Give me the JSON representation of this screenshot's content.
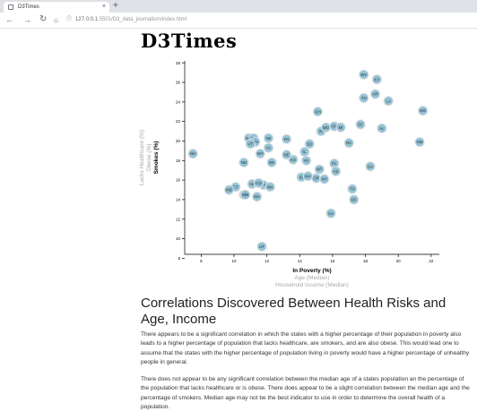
{
  "browser": {
    "tab_title": "D3Times",
    "tab_close": "×",
    "new_tab": "+",
    "url_host": "127.0.0.1",
    "url_rest": ":5501/D3_data_journalism/index.html"
  },
  "page": {
    "title": "D3Times",
    "article_heading": "Correlations Discovered Between Health Risks and Age, Income",
    "paragraphs": [
      "There appears to be a significant correlation in which the states with a higher percentage of their population in poverty also leads to a higher percentage of population that lacks healthcare, are smokers, and are also obese. This would lead one to assume that the states with the higher percentage of population living in poverty would have a higher percentage of unhealthy people in general.",
      "There does not appear to be any significant correlation between the median age of a states population an the percentage of the population that lacks healthcare or is obese. There does appear to be a slight correlation between the median age and the percentage of smokers. Median age may not be the best indicator to use in order to determine the overall health of a population."
    ]
  },
  "chart_data": {
    "type": "scatter",
    "colors": {
      "marker": "#89bdd3",
      "active_label": "#000000",
      "inactive_label": "#a9a9a9"
    },
    "x_axis": {
      "active_label": "In Poverty (%)",
      "inactive_labels": [
        "Age (Median)",
        "Household Income (Median)"
      ],
      "range": [
        7,
        22.5
      ],
      "ticks": [
        8,
        10,
        12,
        14,
        16,
        18,
        20,
        22
      ]
    },
    "y_axis": {
      "active_label": "Smokes (%)",
      "inactive_labels": [
        "Obese (%)",
        "Lacks Healthcare (%)"
      ],
      "range": [
        8.4,
        28.2
      ],
      "ticks": [
        8,
        10,
        12,
        14,
        16,
        18,
        20,
        22,
        24,
        26,
        28
      ]
    },
    "points": [
      {
        "abbr": "WV",
        "x": 17.9,
        "y": 26.8
      },
      {
        "abbr": "KY",
        "x": 18.7,
        "y": 26.3
      },
      {
        "abbr": "AR",
        "x": 18.6,
        "y": 24.8
      },
      {
        "abbr": "TN",
        "x": 17.9,
        "y": 24.4
      },
      {
        "abbr": "LA",
        "x": 19.4,
        "y": 24.1
      },
      {
        "abbr": "MS",
        "x": 21.5,
        "y": 23.1
      },
      {
        "abbr": "OH",
        "x": 15.1,
        "y": 23.0
      },
      {
        "abbr": "SC",
        "x": 17.7,
        "y": 21.7
      },
      {
        "abbr": "AL",
        "x": 19.0,
        "y": 21.3
      },
      {
        "abbr": "IN",
        "x": 15.3,
        "y": 21.0
      },
      {
        "abbr": "MO",
        "x": 15.6,
        "y": 21.4
      },
      {
        "abbr": "OK",
        "x": 16.1,
        "y": 21.5
      },
      {
        "abbr": "MI",
        "x": 16.5,
        "y": 21.4
      },
      {
        "abbr": "NC",
        "x": 17.0,
        "y": 19.8
      },
      {
        "abbr": "NM",
        "x": 21.3,
        "y": 19.9
      },
      {
        "abbr": "PA",
        "x": 13.2,
        "y": 20.2
      },
      {
        "abbr": "WI",
        "x": 12.1,
        "y": 20.3
      },
      {
        "abbr": "ME",
        "x": 10.9,
        "y": 20.3
      },
      {
        "abbr": "AK",
        "x": 11.2,
        "y": 20.3
      },
      {
        "abbr": "NH",
        "x": 11.3,
        "y": 19.9
      },
      {
        "abbr": "IA",
        "x": 12.1,
        "y": 19.3
      },
      {
        "abbr": "VT",
        "x": 11.0,
        "y": 19.7
      },
      {
        "abbr": "DE",
        "x": 12.3,
        "y": 17.8
      },
      {
        "abbr": "WY",
        "x": 11.6,
        "y": 18.7
      },
      {
        "abbr": "SD",
        "x": 14.6,
        "y": 19.7
      },
      {
        "abbr": "KS",
        "x": 13.6,
        "y": 18.1
      },
      {
        "abbr": "RI",
        "x": 14.4,
        "y": 18.0
      },
      {
        "abbr": "IL",
        "x": 14.3,
        "y": 18.9
      },
      {
        "abbr": "NE",
        "x": 13.2,
        "y": 18.6
      },
      {
        "abbr": "MT",
        "x": 15.2,
        "y": 17.1
      },
      {
        "abbr": "FL",
        "x": 16.1,
        "y": 17.7
      },
      {
        "abbr": "ND",
        "x": 10.6,
        "y": 17.8
      },
      {
        "abbr": "AZ",
        "x": 16.2,
        "y": 16.9
      },
      {
        "abbr": "HI",
        "x": 11.1,
        "y": 15.6
      },
      {
        "abbr": "VA",
        "x": 11.8,
        "y": 15.5
      },
      {
        "abbr": "OR",
        "x": 15.0,
        "y": 16.2
      },
      {
        "abbr": "ID",
        "x": 14.1,
        "y": 16.3
      },
      {
        "abbr": "GA",
        "x": 18.3,
        "y": 17.4
      },
      {
        "abbr": "NV",
        "x": 14.5,
        "y": 16.4
      },
      {
        "abbr": "WA",
        "x": 12.2,
        "y": 15.3
      },
      {
        "abbr": "NY",
        "x": 15.5,
        "y": 16.1
      },
      {
        "abbr": "TX",
        "x": 17.2,
        "y": 15.1
      },
      {
        "abbr": "NJ",
        "x": 10.6,
        "y": 14.5
      },
      {
        "abbr": "CT",
        "x": 10.1,
        "y": 15.3
      },
      {
        "abbr": "MD",
        "x": 9.7,
        "y": 15.0
      },
      {
        "abbr": "CO",
        "x": 11.5,
        "y": 15.7
      },
      {
        "abbr": "MN",
        "x": 10.7,
        "y": 14.5
      },
      {
        "abbr": "MA",
        "x": 11.4,
        "y": 14.3
      },
      {
        "abbr": "NH2",
        "x": 7.5,
        "y": 18.7
      },
      {
        "abbr": "DC",
        "x": 17.3,
        "y": 14.0
      },
      {
        "abbr": "CA",
        "x": 15.9,
        "y": 12.6
      },
      {
        "abbr": "UT",
        "x": 11.7,
        "y": 9.2
      }
    ]
  }
}
